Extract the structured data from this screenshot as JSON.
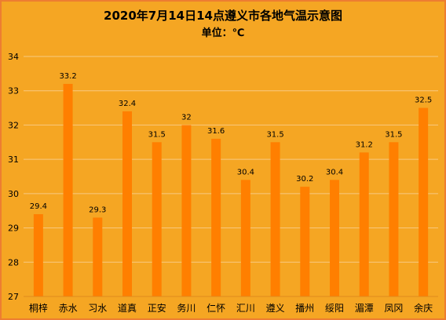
{
  "colors": {
    "background": "#F5A623",
    "border": "#ED7D31",
    "bar": "#FF7F00",
    "gridline": "#F8C981",
    "axis": "#E08A1E",
    "text": "#000000"
  },
  "chart_data": {
    "type": "bar",
    "title": "2020年7月14日14点遵义市各地气温示意图",
    "subtitle": "单位：℃",
    "xlabel": "",
    "ylabel": "",
    "categories": [
      "桐梓",
      "赤水",
      "习水",
      "道真",
      "正安",
      "务川",
      "仁怀",
      "汇川",
      "遵义",
      "播州",
      "绥阳",
      "湄潭",
      "凤冈",
      "余庆"
    ],
    "values": [
      29.4,
      33.2,
      29.3,
      32.4,
      31.5,
      32,
      31.6,
      30.4,
      31.5,
      30.2,
      30.4,
      31.2,
      31.5,
      32.5
    ],
    "data_labels": [
      "29.4",
      "33.2",
      "29.3",
      "32.4",
      "31.5",
      "32",
      "31.6",
      "30.4",
      "31.5",
      "30.2",
      "30.4",
      "31.2",
      "31.5",
      "32.5"
    ],
    "ylim": [
      27,
      34
    ],
    "yticks": [
      27,
      28,
      29,
      30,
      31,
      32,
      33,
      34
    ],
    "ytick_labels": [
      "27",
      "28",
      "29",
      "30",
      "31",
      "32",
      "33",
      "34"
    ],
    "grid": true,
    "legend": "none"
  }
}
